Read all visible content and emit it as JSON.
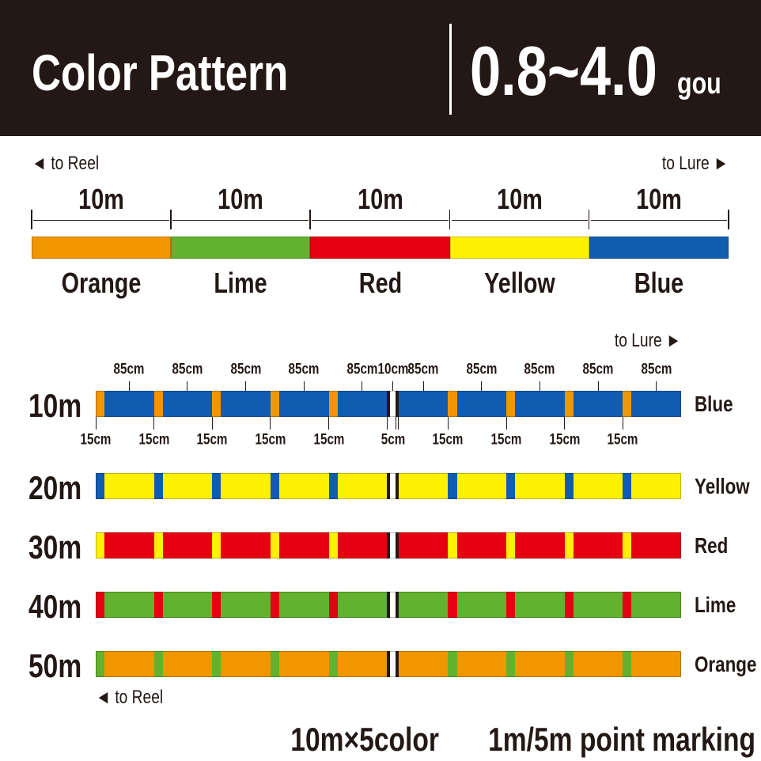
{
  "header": {
    "title": "Color Pattern",
    "range": "0.8~4.0",
    "unit": "gou",
    "background": "#231815"
  },
  "colors": {
    "Orange": "#f29600",
    "Lime": "#62b22f",
    "Red": "#e60012",
    "Yellow": "#fff100",
    "Blue": "#0f5cb0",
    "Black": "#231815",
    "White": "#ffffff"
  },
  "overview": {
    "to_reel": "◄ to Reel",
    "to_lure": "to Lure ►",
    "segments": [
      {
        "length": "10m",
        "color": "Orange",
        "label": "Orange"
      },
      {
        "length": "10m",
        "color": "Lime",
        "label": "Lime"
      },
      {
        "length": "10m",
        "color": "Red",
        "label": "Red"
      },
      {
        "length": "10m",
        "color": "Yellow",
        "label": "Yellow"
      },
      {
        "length": "10m",
        "color": "Blue",
        "label": "Blue"
      }
    ]
  },
  "detail": {
    "to_lure": "to Lure ►",
    "to_reel": "◄ to Reel",
    "pattern_cm": [
      {
        "len": 15,
        "kind": "mark",
        "label": "15cm"
      },
      {
        "len": 85,
        "kind": "base",
        "label": "85cm"
      },
      {
        "len": 15,
        "kind": "mark",
        "label": "15cm"
      },
      {
        "len": 85,
        "kind": "base",
        "label": "85cm"
      },
      {
        "len": 15,
        "kind": "mark",
        "label": "15cm"
      },
      {
        "len": 85,
        "kind": "base",
        "label": "85cm"
      },
      {
        "len": 15,
        "kind": "mark",
        "label": "15cm"
      },
      {
        "len": 85,
        "kind": "base",
        "label": "85cm"
      },
      {
        "len": 15,
        "kind": "mark",
        "label": "15cm"
      },
      {
        "len": 85,
        "kind": "base",
        "label": "85cm"
      },
      {
        "len": 5,
        "kind": "black",
        "label": "5cm"
      },
      {
        "len": 10,
        "kind": "white",
        "label": "10cm"
      },
      {
        "len": 5,
        "kind": "black",
        "label": ""
      },
      {
        "len": 85,
        "kind": "base",
        "label": "85cm"
      },
      {
        "len": 15,
        "kind": "mark",
        "label": "15cm"
      },
      {
        "len": 85,
        "kind": "base",
        "label": "85cm"
      },
      {
        "len": 15,
        "kind": "mark",
        "label": "15cm"
      },
      {
        "len": 85,
        "kind": "base",
        "label": "85cm"
      },
      {
        "len": 15,
        "kind": "mark",
        "label": "15cm"
      },
      {
        "len": 85,
        "kind": "base",
        "label": "85cm"
      },
      {
        "len": 15,
        "kind": "mark",
        "label": "15cm"
      },
      {
        "len": 85,
        "kind": "base",
        "label": "85cm"
      }
    ],
    "rows": [
      {
        "distance": "10m",
        "base": "Blue",
        "mark": "Orange",
        "label": "Blue"
      },
      {
        "distance": "20m",
        "base": "Yellow",
        "mark": "Blue",
        "label": "Yellow"
      },
      {
        "distance": "30m",
        "base": "Red",
        "mark": "Yellow",
        "label": "Red"
      },
      {
        "distance": "40m",
        "base": "Lime",
        "mark": "Red",
        "label": "Lime"
      },
      {
        "distance": "50m",
        "base": "Orange",
        "mark": "Lime",
        "label": "Orange"
      }
    ]
  },
  "footer": {
    "spec": "10m×5color",
    "marking": "1m/5m point marking"
  }
}
